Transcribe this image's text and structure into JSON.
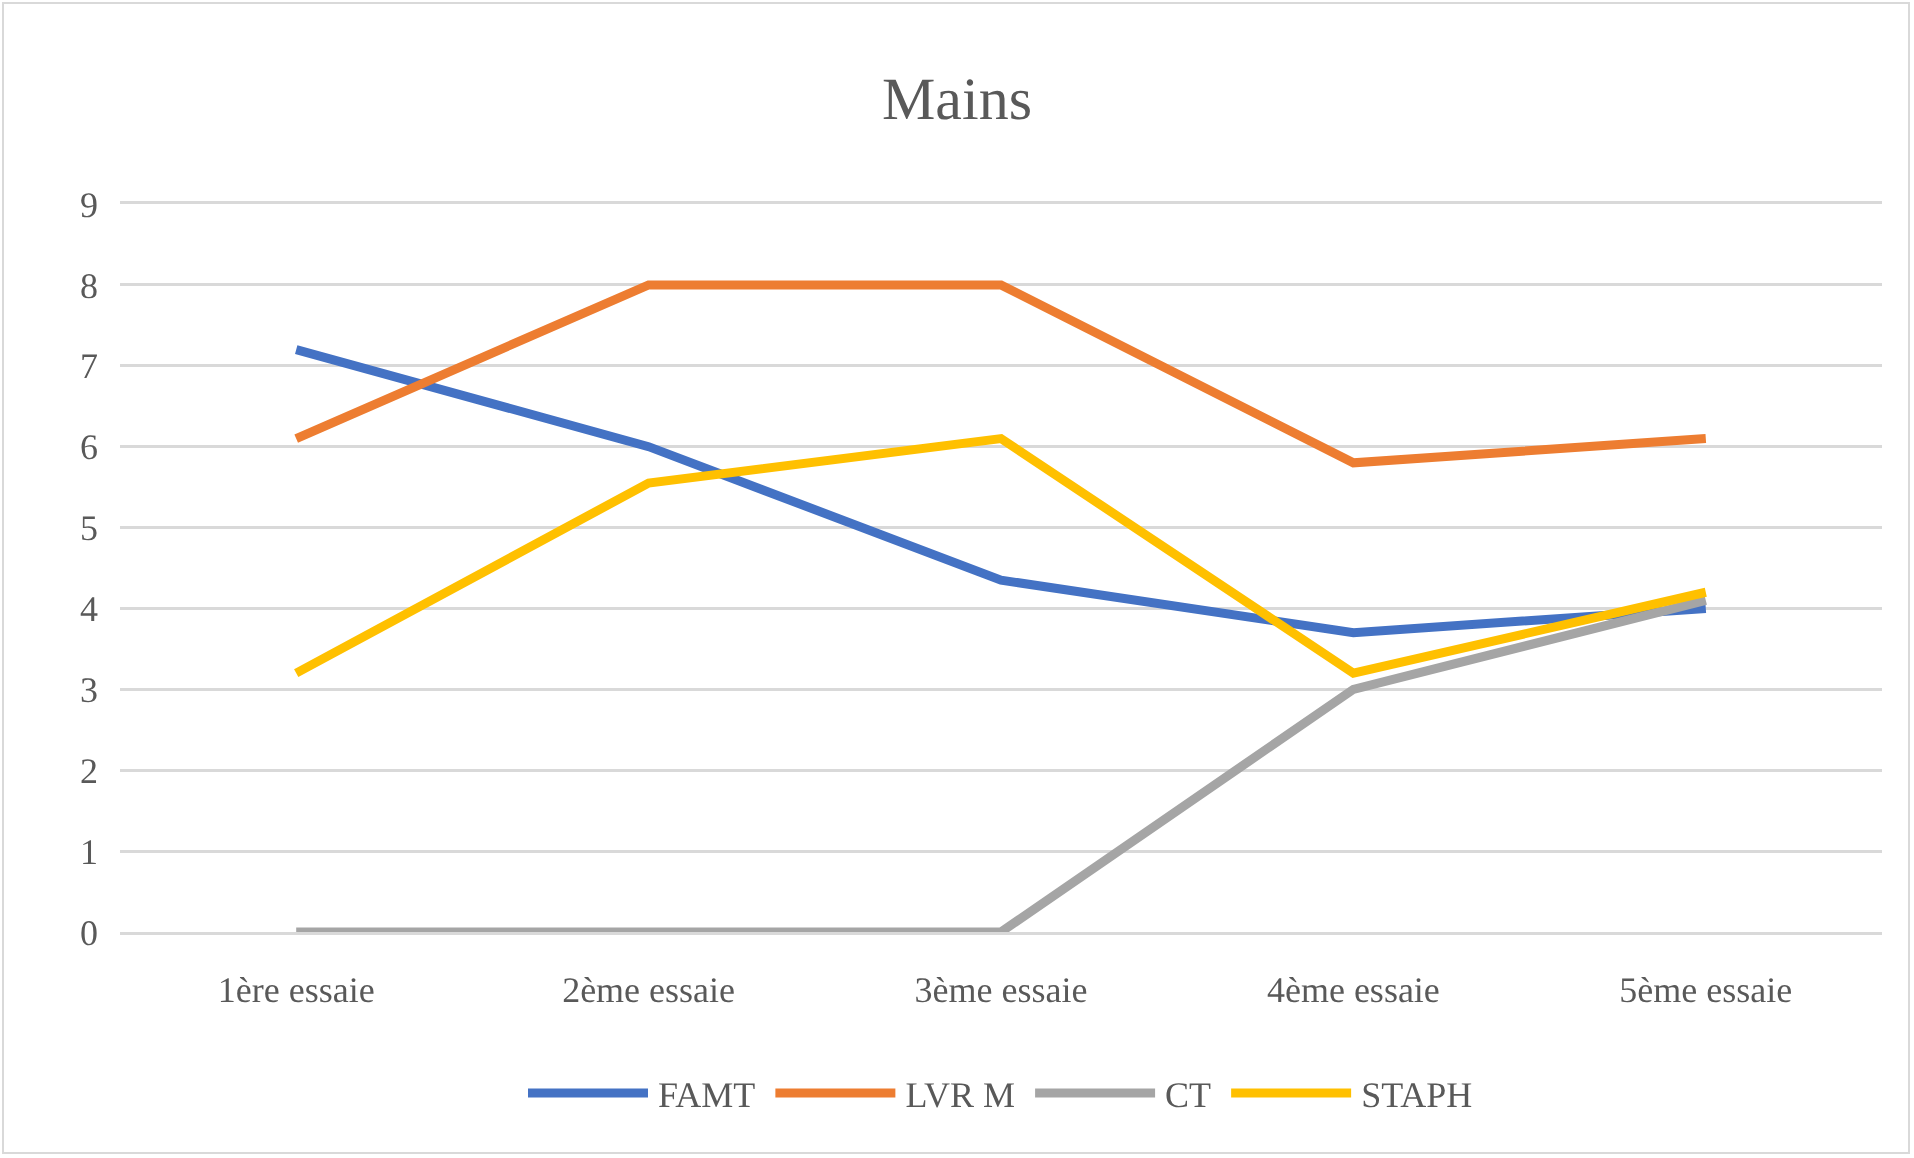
{
  "chart_data": {
    "type": "line",
    "title": "Mains",
    "categories": [
      "1ère essaie",
      "2ème essaie",
      "3ème essaie",
      "4ème essaie",
      "5ème essaie"
    ],
    "series": [
      {
        "name": "FAMT",
        "color": "#4472c4",
        "values": [
          7.2,
          6.0,
          4.35,
          3.7,
          4.0
        ]
      },
      {
        "name": "LVR M",
        "color": "#ed7d31",
        "values": [
          6.1,
          8.0,
          8.0,
          5.8,
          6.1
        ]
      },
      {
        "name": "CT",
        "color": "#a5a5a5",
        "values": [
          0,
          0,
          0,
          3.0,
          4.1
        ]
      },
      {
        "name": "STAPH",
        "color": "#ffc000",
        "values": [
          3.2,
          5.55,
          6.1,
          3.2,
          4.2
        ]
      }
    ],
    "ylim": [
      0,
      9
    ],
    "yticks": [
      0,
      1,
      2,
      3,
      4,
      5,
      6,
      7,
      8,
      9
    ],
    "grid": "y",
    "legend": "bottom",
    "marker": "none",
    "line_style": "solid"
  }
}
